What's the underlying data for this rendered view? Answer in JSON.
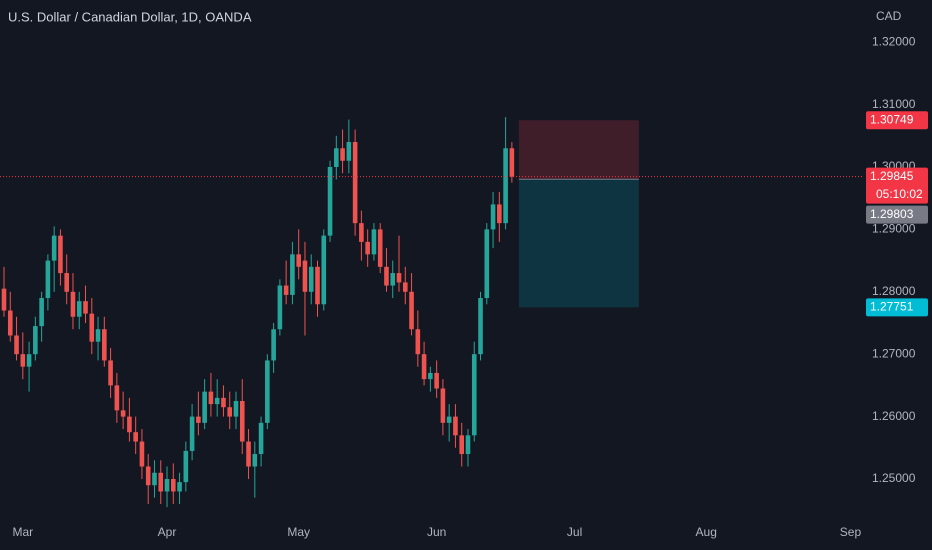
{
  "chart_data": {
    "type": "candlestick",
    "title": "U.S. Dollar / Canadian Dollar, 1D, OANDA",
    "y_axis_label": "CAD",
    "up_color": "#26a69a",
    "down_color": "#ef5350",
    "ylim": [
      1.24423,
      1.32676
    ],
    "yticks": [
      {
        "value": 1.25,
        "label": "1.25000"
      },
      {
        "value": 1.26,
        "label": "1.26000"
      },
      {
        "value": 1.27,
        "label": "1.27000"
      },
      {
        "value": 1.28,
        "label": "1.28000"
      },
      {
        "value": 1.29,
        "label": "1.29000"
      },
      {
        "value": 1.3,
        "label": "1.30000"
      },
      {
        "value": 1.31,
        "label": "1.31000"
      },
      {
        "value": 1.32,
        "label": "1.32000"
      }
    ],
    "grid": false,
    "categories": [
      null,
      null,
      null,
      "Mar",
      null,
      null,
      null,
      null,
      null,
      null,
      null,
      null,
      null,
      null,
      null,
      null,
      null,
      null,
      null,
      null,
      null,
      null,
      null,
      null,
      null,
      null,
      "Apr",
      null,
      null,
      null,
      null,
      null,
      null,
      null,
      null,
      null,
      null,
      null,
      null,
      null,
      null,
      null,
      null,
      null,
      null,
      null,
      null,
      "May",
      null,
      null,
      null,
      null,
      null,
      null,
      null,
      null,
      null,
      null,
      null,
      null,
      null,
      null,
      null,
      null,
      null,
      null,
      null,
      null,
      null,
      "Jun",
      null,
      null,
      null,
      null,
      null,
      null,
      null,
      null,
      null,
      null,
      null,
      null,
      null,
      null,
      null,
      null,
      null,
      null,
      null,
      null,
      null,
      "Jul",
      null,
      null,
      null,
      null,
      null,
      null,
      null,
      null,
      null,
      null,
      null,
      null,
      null,
      null,
      null,
      null,
      null,
      null,
      null,
      null,
      "Aug",
      null,
      null,
      null,
      null,
      null,
      null,
      null,
      null,
      null,
      null,
      null,
      null,
      null,
      null,
      null,
      null,
      null,
      null,
      null,
      null,
      null,
      null,
      "Sep"
    ],
    "open": [
      1.2805,
      1.277,
      1.273,
      1.27,
      1.268,
      1.27,
      1.2745,
      1.279,
      1.285,
      1.289,
      1.283,
      1.28,
      1.276,
      1.2785,
      1.2765,
      1.272,
      1.274,
      1.269,
      1.265,
      1.261,
      1.26,
      1.2575,
      1.256,
      1.252,
      1.249,
      1.251,
      1.248,
      1.25,
      1.248,
      1.2495,
      1.2545,
      1.26,
      1.259,
      1.264,
      1.262,
      1.263,
      1.2615,
      1.26,
      1.2625,
      1.256,
      1.252,
      1.254,
      1.259,
      1.269,
      1.274,
      1.281,
      1.2795,
      1.286,
      1.285,
      1.28,
      1.284,
      1.278,
      1.289,
      1.3,
      1.303,
      1.301,
      1.304,
      1.291,
      1.288,
      1.286,
      1.29,
      1.284,
      1.281,
      1.283,
      1.2815,
      1.28,
      1.274,
      1.27,
      1.266,
      1.267,
      1.2645,
      1.259,
      1.26,
      1.257,
      1.254,
      1.257,
      1.27,
      1.279,
      1.29,
      1.294,
      1.291,
      1.303,
      null,
      null,
      null,
      null,
      null,
      null,
      null,
      null,
      null,
      null,
      null,
      null,
      null,
      null,
      null,
      null,
      null,
      null,
      null,
      null,
      null,
      null,
      null,
      null,
      null,
      null,
      null,
      null,
      null,
      null,
      null,
      null,
      null,
      null,
      null,
      null,
      null,
      null,
      null,
      null,
      null,
      null,
      null,
      null,
      null,
      null,
      null,
      null,
      null,
      null,
      null,
      null,
      null,
      null
    ],
    "high": [
      1.284,
      1.28,
      1.276,
      1.2735,
      1.272,
      1.276,
      1.28,
      1.286,
      1.2905,
      1.29,
      1.286,
      1.283,
      1.28,
      1.281,
      1.279,
      1.276,
      1.276,
      1.271,
      1.267,
      1.264,
      1.263,
      1.26,
      1.258,
      1.254,
      1.253,
      1.253,
      1.252,
      1.2525,
      1.251,
      1.256,
      1.262,
      1.264,
      1.266,
      1.267,
      1.266,
      1.265,
      1.264,
      1.264,
      1.266,
      1.258,
      1.256,
      1.26,
      1.27,
      1.275,
      1.282,
      1.285,
      1.288,
      1.29,
      1.288,
      1.286,
      1.285,
      1.29,
      1.301,
      1.305,
      1.306,
      1.3076,
      1.306,
      1.293,
      1.29,
      1.291,
      1.291,
      1.287,
      1.285,
      1.289,
      1.284,
      1.283,
      1.277,
      1.272,
      1.268,
      1.269,
      1.266,
      1.262,
      1.262,
      1.259,
      1.258,
      1.272,
      1.28,
      1.291,
      1.296,
      1.296,
      1.308,
      1.304,
      null,
      null,
      null,
      null,
      null,
      null,
      null,
      null,
      null,
      null,
      null,
      null,
      null,
      null,
      null,
      null,
      null,
      null,
      null,
      null,
      null,
      null,
      null,
      null,
      null,
      null,
      null,
      null,
      null,
      null,
      null,
      null,
      null,
      null,
      null,
      null,
      null,
      null,
      null,
      null,
      null,
      null,
      null,
      null,
      null,
      null,
      null,
      null,
      null,
      null,
      null,
      null,
      null,
      null
    ],
    "low": [
      1.276,
      1.272,
      1.269,
      1.266,
      1.264,
      1.269,
      1.272,
      1.277,
      1.28,
      1.281,
      1.278,
      1.274,
      1.274,
      1.275,
      1.27,
      1.269,
      1.268,
      1.263,
      1.259,
      1.258,
      1.256,
      1.254,
      1.25,
      1.246,
      1.247,
      1.246,
      1.2455,
      1.246,
      1.246,
      1.248,
      1.253,
      1.257,
      1.258,
      1.26,
      1.26,
      1.26,
      1.258,
      1.258,
      1.254,
      1.25,
      1.247,
      1.252,
      1.258,
      1.267,
      1.273,
      1.278,
      1.278,
      1.282,
      1.273,
      1.278,
      1.276,
      1.277,
      1.288,
      1.298,
      1.299,
      1.299,
      1.289,
      1.285,
      1.284,
      1.285,
      1.283,
      1.28,
      1.279,
      1.28,
      1.278,
      1.273,
      1.268,
      1.265,
      1.264,
      1.263,
      1.257,
      1.256,
      1.255,
      1.252,
      1.252,
      1.256,
      1.269,
      1.278,
      1.287,
      1.288,
      1.29,
      1.2975,
      null,
      null,
      null,
      null,
      null,
      null,
      null,
      null,
      null,
      null,
      null,
      null,
      null,
      null,
      null,
      null,
      null,
      null,
      null,
      null,
      null,
      null,
      null,
      null,
      null,
      null,
      null,
      null,
      null,
      null,
      null,
      null,
      null,
      null,
      null,
      null,
      null,
      null,
      null,
      null,
      null,
      null,
      null,
      null,
      null,
      null,
      null,
      null,
      null,
      null,
      null,
      null,
      null,
      null
    ],
    "close": [
      1.277,
      1.273,
      1.27,
      1.268,
      1.27,
      1.2745,
      1.279,
      1.285,
      1.289,
      1.283,
      1.28,
      1.276,
      1.2785,
      1.2765,
      1.272,
      1.274,
      1.269,
      1.265,
      1.261,
      1.26,
      1.2575,
      1.256,
      1.252,
      1.249,
      1.251,
      1.248,
      1.25,
      1.248,
      1.2495,
      1.2545,
      1.26,
      1.259,
      1.264,
      1.262,
      1.263,
      1.2615,
      1.26,
      1.2625,
      1.256,
      1.252,
      1.254,
      1.259,
      1.269,
      1.274,
      1.281,
      1.2795,
      1.286,
      1.284,
      1.28,
      1.284,
      1.278,
      1.289,
      1.3,
      1.303,
      1.301,
      1.304,
      1.291,
      1.288,
      1.286,
      1.29,
      1.284,
      1.281,
      1.283,
      1.2815,
      1.28,
      1.274,
      1.27,
      1.266,
      1.267,
      1.2645,
      1.259,
      1.26,
      1.257,
      1.254,
      1.257,
      1.27,
      1.279,
      1.29,
      1.294,
      1.291,
      1.303,
      1.29845,
      null,
      null,
      null,
      null,
      null,
      null,
      null,
      null,
      null,
      null,
      null,
      null,
      null,
      null,
      null,
      null,
      null,
      null,
      null,
      null,
      null,
      null,
      null,
      null,
      null,
      null,
      null,
      null,
      null,
      null,
      null,
      null,
      null,
      null,
      null,
      null,
      null,
      null,
      null,
      null,
      null,
      null,
      null,
      null,
      null,
      null,
      null,
      null,
      null,
      null,
      null,
      null,
      null,
      null
    ],
    "last_price": 1.29845,
    "last_price_color": "#f23645",
    "countdown": "05:10:02",
    "position": {
      "stop": 1.30749,
      "entry": 1.29803,
      "target": 1.27751,
      "stop_color": "#f23645",
      "entry_color": "#787b86",
      "target_color": "#00bcd4"
    }
  }
}
